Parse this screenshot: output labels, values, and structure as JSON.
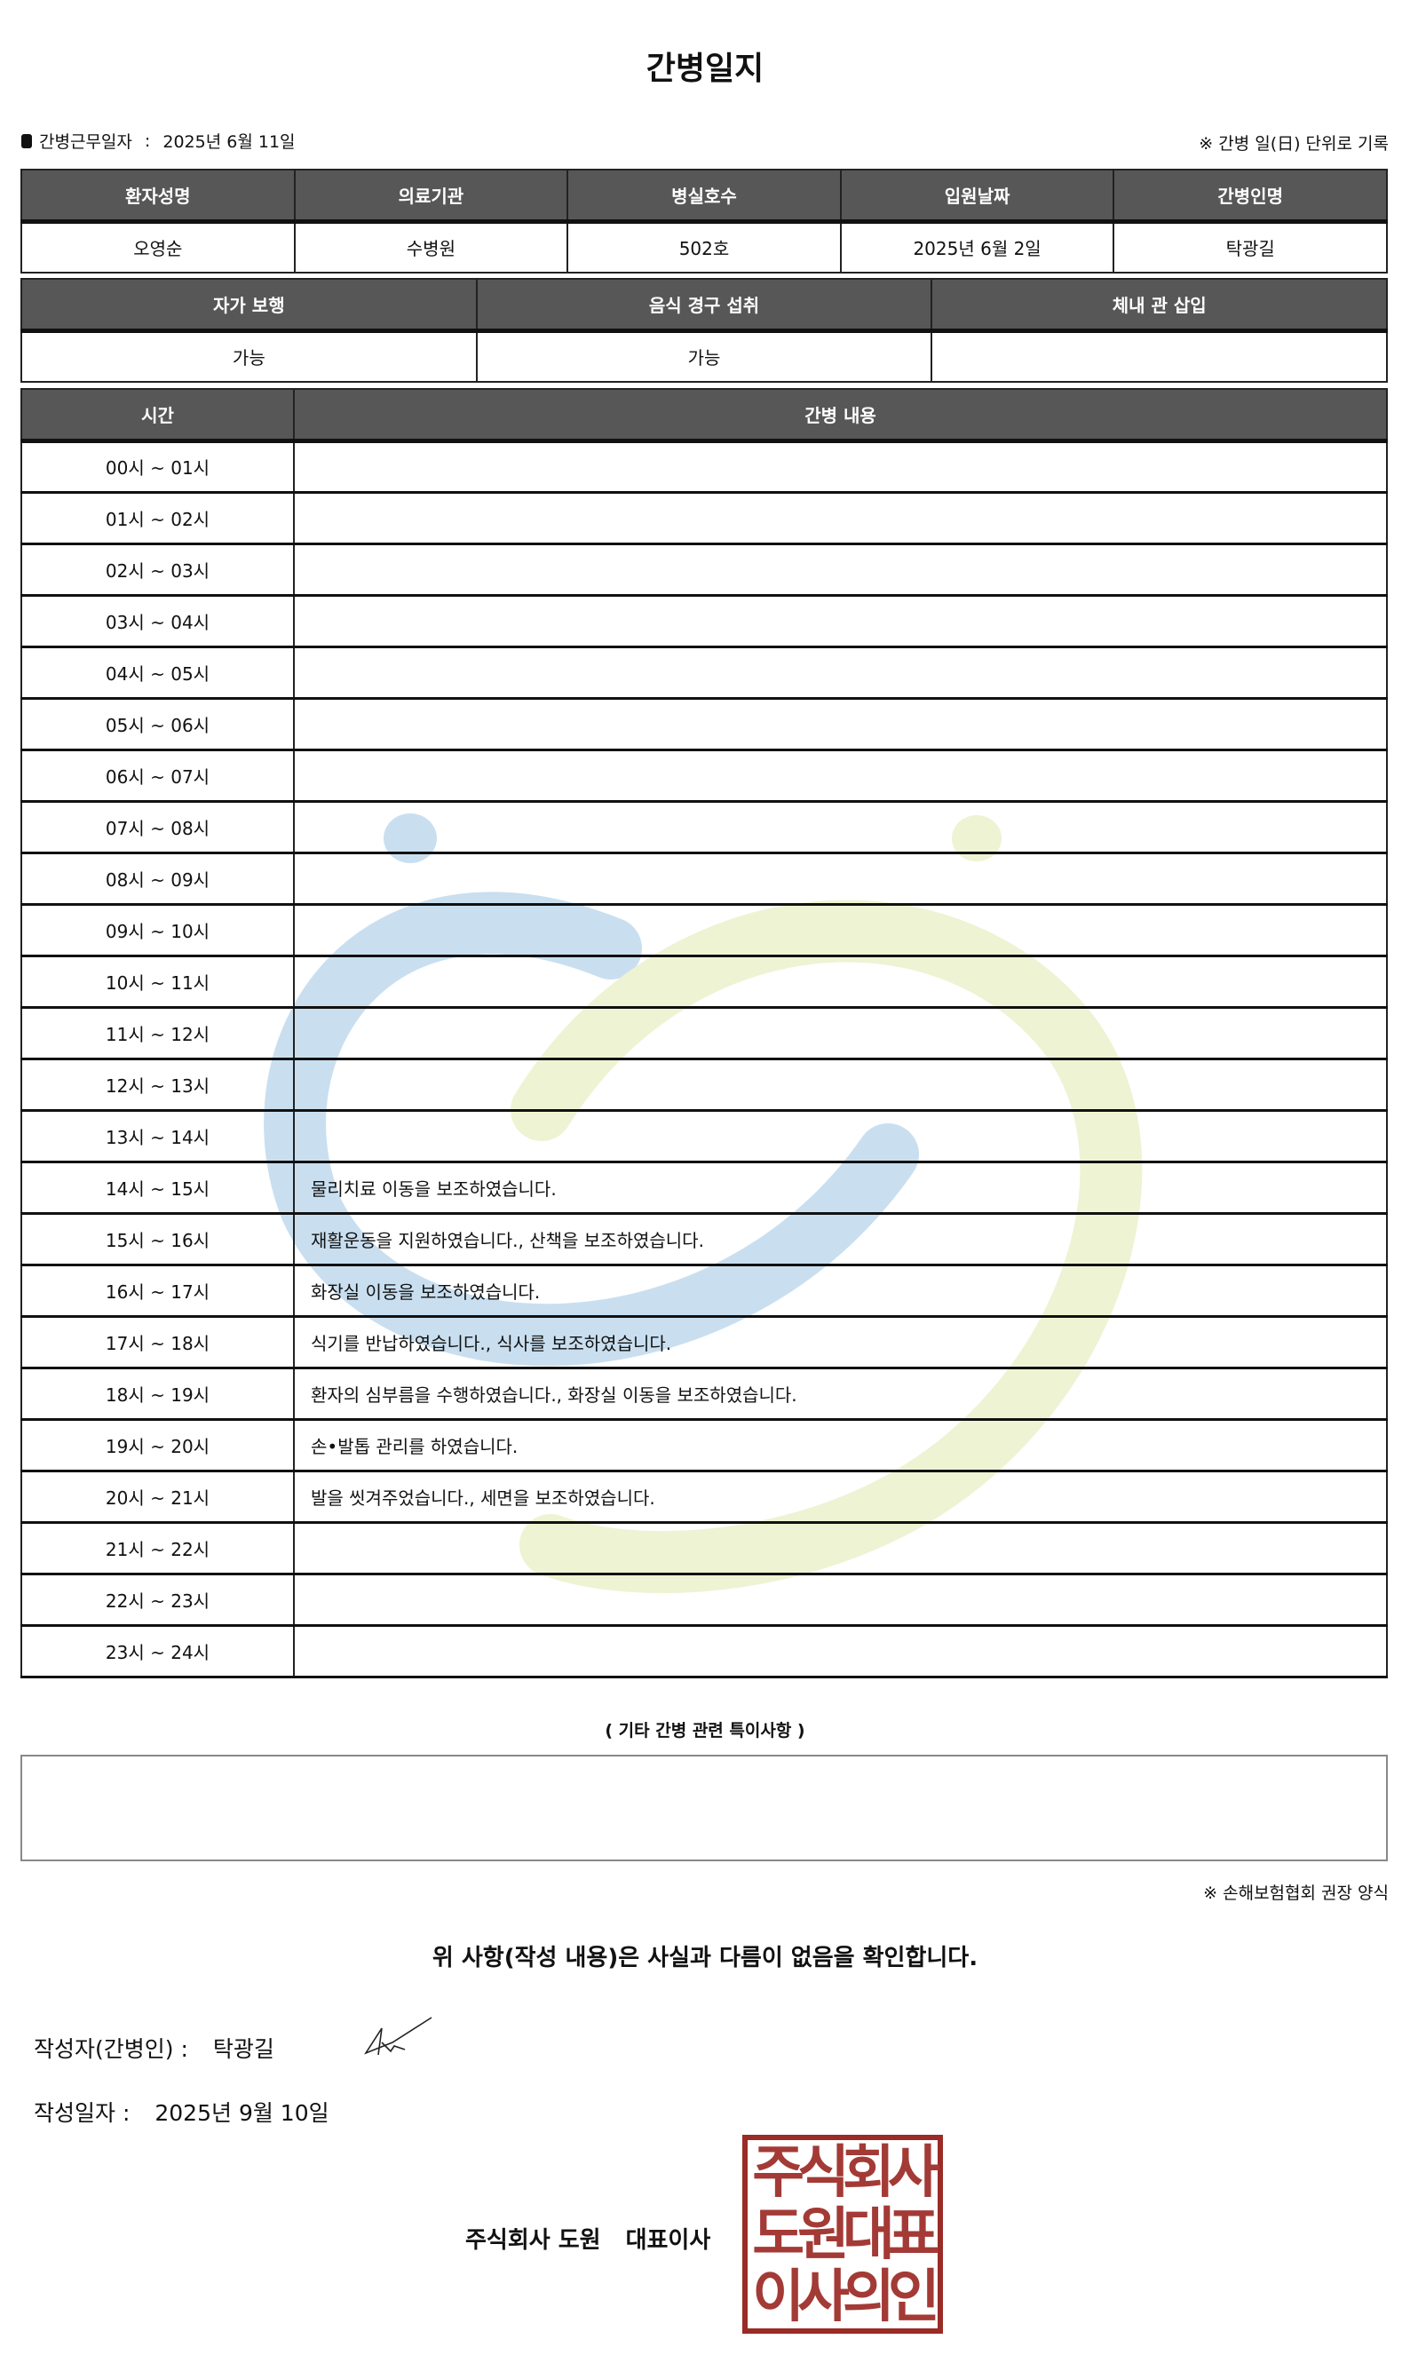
{
  "title": "간병일지",
  "work_date_label": "간병근무일자",
  "work_date": "2025년 6월 11일",
  "record_note": "※ 간병 일(日) 단위로 기록",
  "patient_table": {
    "headers": [
      "환자성명",
      "의료기관",
      "병실호수",
      "입원날짜",
      "간병인명"
    ],
    "values": [
      "오영순",
      "수병원",
      "502호",
      "2025년 6월 2일",
      "탁광길"
    ]
  },
  "status_table": {
    "headers": [
      "자가 보행",
      "음식 경구 섭취",
      "체내 관 삽입"
    ],
    "values": [
      "가능",
      "가능",
      ""
    ]
  },
  "care_table": {
    "headers": [
      "시간",
      "간병 내용"
    ],
    "rows": [
      {
        "time": "00시 ~ 01시",
        "content": ""
      },
      {
        "time": "01시 ~ 02시",
        "content": ""
      },
      {
        "time": "02시 ~ 03시",
        "content": ""
      },
      {
        "time": "03시 ~ 04시",
        "content": ""
      },
      {
        "time": "04시 ~ 05시",
        "content": ""
      },
      {
        "time": "05시 ~ 06시",
        "content": ""
      },
      {
        "time": "06시 ~ 07시",
        "content": ""
      },
      {
        "time": "07시 ~ 08시",
        "content": ""
      },
      {
        "time": "08시 ~ 09시",
        "content": ""
      },
      {
        "time": "09시 ~ 10시",
        "content": ""
      },
      {
        "time": "10시 ~ 11시",
        "content": ""
      },
      {
        "time": "11시 ~ 12시",
        "content": ""
      },
      {
        "time": "12시 ~ 13시",
        "content": ""
      },
      {
        "time": "13시 ~ 14시",
        "content": ""
      },
      {
        "time": "14시 ~ 15시",
        "content": "물리치료 이동을 보조하였습니다."
      },
      {
        "time": "15시 ~ 16시",
        "content": "재활운동을 지원하였습니다., 산책을 보조하였습니다."
      },
      {
        "time": "16시 ~ 17시",
        "content": "화장실 이동을 보조하였습니다."
      },
      {
        "time": "17시 ~ 18시",
        "content": "식기를 반납하였습니다., 식사를 보조하였습니다."
      },
      {
        "time": "18시 ~ 19시",
        "content": "환자의 심부름을 수행하였습니다., 화장실 이동을 보조하였습니다."
      },
      {
        "time": "19시 ~ 20시",
        "content": "손•발톱 관리를 하였습니다."
      },
      {
        "time": "20시 ~ 21시",
        "content": "발을 씻겨주었습니다., 세면을 보조하였습니다."
      },
      {
        "time": "21시 ~ 22시",
        "content": ""
      },
      {
        "time": "22시 ~ 23시",
        "content": ""
      },
      {
        "time": "23시 ~ 24시",
        "content": ""
      }
    ]
  },
  "other_notes_label": "( 기타 간병 관련 특이사항 )",
  "other_notes": "",
  "form_note": "※ 손해보험협회 권장 양식",
  "confirm_text": "위 사항(작성 내용)은 사실과 다름이 없음을 확인합니다.",
  "writer_label": "작성자(간병인) :",
  "writer_name": "탁광길",
  "write_date_label": "작성일자 :",
  "write_date": "2025년 9월 10일",
  "company_name": "주식회사 도원",
  "ceo_title": "대표이사",
  "stamp_text": "주식회사도원대표이사의인",
  "colors": {
    "header_bg": "#575757",
    "stamp": "#9a2b26",
    "watermark_blue": "#c9dff0",
    "watermark_green": "#eef3d3"
  }
}
